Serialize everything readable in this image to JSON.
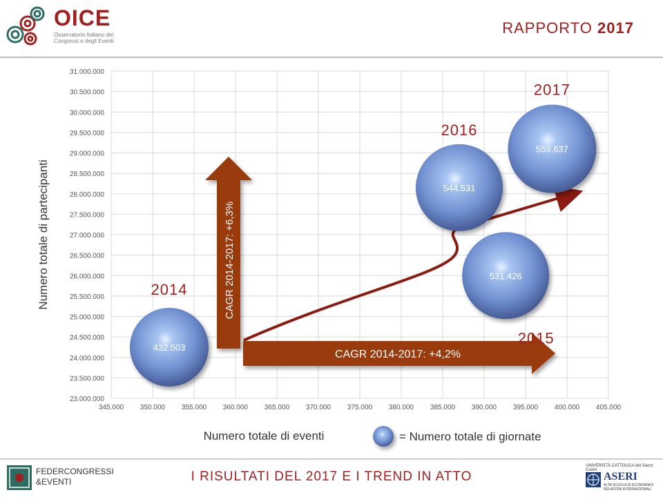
{
  "header": {
    "logo_word": "OICE",
    "logo_subtitle": "Osservatorio Italiano dei Congressi e degli Eventi",
    "report_prefix": "RAPPORTO",
    "report_year": "2017"
  },
  "footer": {
    "left_logo_line1": "FEDERCONGRESSI",
    "left_logo_line2": "&EVENTI",
    "title": "I RISULTATI DEL 2017 E I TREND IN ATTO",
    "right_logo_top": "UNIVERSITÀ CATTOLICA del Sacro Cuore",
    "right_logo_name": "ASERI",
    "right_logo_sub": "ALTA SCUOLA DI ECONOMIA E RELAZIONI INTERNAZIONALI"
  },
  "colors": {
    "accent": "#a02020",
    "arrow": "#9a3a08",
    "bubble": "#6f8fd0",
    "grid": "#d9d9d9"
  },
  "chart_data": {
    "type": "scatter",
    "xlabel": "Numero totale di eventi",
    "ylabel": "Numero totale di partecipanti",
    "xlim": [
      345000,
      405000
    ],
    "ylim": [
      23000000,
      31000000
    ],
    "x_ticks": [
      "345.000",
      "350.000",
      "355.000",
      "360.000",
      "365.000",
      "370.000",
      "375.000",
      "380.000",
      "385.000",
      "390.000",
      "395.000",
      "400.000",
      "405.000"
    ],
    "y_ticks": [
      "23.000.000",
      "23.500.000",
      "24.000.000",
      "24.500.000",
      "25.000.000",
      "25.500.000",
      "26.000.000",
      "26.500.000",
      "27.000.000",
      "27.500.000",
      "28.000.000",
      "28.500.000",
      "29.000.000",
      "29.500.000",
      "30.000.000",
      "30.500.000",
      "31.000.000"
    ],
    "grid": true,
    "legend": {
      "marker": "bubble",
      "text": "= Numero totale di giornate",
      "placement": "bottom"
    },
    "points": [
      {
        "year": "2014",
        "x": 352000,
        "y": 24250000,
        "label": "432.503"
      },
      {
        "year": "2015",
        "x": 392600,
        "y": 26000000,
        "label": "531.426"
      },
      {
        "year": "2016",
        "x": 387000,
        "y": 28150000,
        "label": "544.531"
      },
      {
        "year": "2017",
        "x": 398200,
        "y": 29100000,
        "label": "559.637"
      }
    ],
    "annotations": {
      "cagr_events": "CAGR 2014-2017: +4,2%",
      "cagr_participants": "CAGR 2014-2017: +6,3%"
    }
  }
}
